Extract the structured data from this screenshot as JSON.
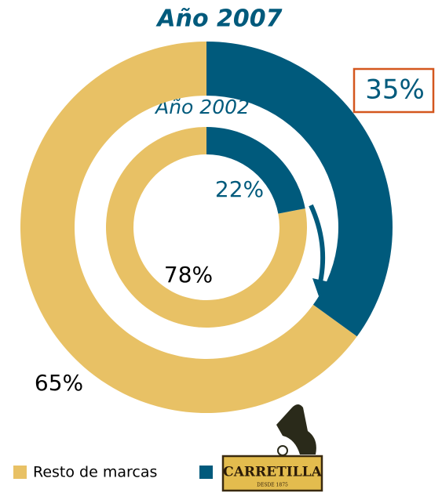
{
  "chart_data": [
    {
      "type": "pie",
      "title": "Año 2007",
      "categories": [
        "Resto de marcas",
        "CARRETILLA"
      ],
      "values": [
        65,
        35
      ],
      "value_labels": [
        "65%",
        "35%"
      ],
      "colors": [
        "#E8C165",
        "#005A7C"
      ]
    },
    {
      "type": "pie",
      "title": "Año 2002",
      "categories": [
        "Resto de marcas",
        "CARRETILLA"
      ],
      "values": [
        78,
        22
      ],
      "value_labels": [
        "78%",
        "22%"
      ],
      "colors": [
        "#E8C165",
        "#005A7C"
      ]
    }
  ],
  "logo_tagline": "DESDE 1875"
}
